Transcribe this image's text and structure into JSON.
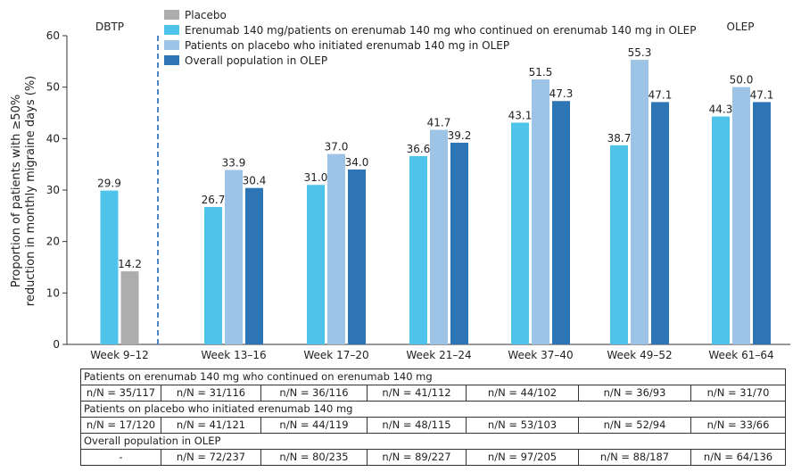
{
  "chart_data": {
    "type": "bar",
    "ylabel_line1": "Proportion of patients with ≥50%",
    "ylabel_line2": "reduction in monthly migraine days (%)",
    "ylim": [
      0,
      60
    ],
    "yticks": [
      0,
      10,
      20,
      30,
      40,
      50,
      60
    ],
    "categories": [
      "Week 9–12",
      "Week 13–16",
      "Week 17–20",
      "Week 21–24",
      "Week 37–40",
      "Week 49–52",
      "Week 61–64"
    ],
    "legend_position": "top",
    "period_labels": {
      "dbtp": "DBTP",
      "olep": "OLEP"
    },
    "series": [
      {
        "name": "Placebo",
        "color": "#adadad",
        "values": [
          14.2,
          null,
          null,
          null,
          null,
          null,
          null
        ]
      },
      {
        "name": "Erenumab 140 mg/patients on erenumab 140 mg who continued on erenumab 140 mg in OLEP",
        "color": "#4fc3ea",
        "values": [
          29.9,
          26.7,
          31.0,
          36.6,
          43.1,
          38.7,
          44.3
        ]
      },
      {
        "name": "Patients on placebo who initiated erenumab 140 mg in OLEP",
        "color": "#9dc3e6",
        "values": [
          null,
          33.9,
          37.0,
          41.7,
          51.5,
          55.3,
          50.0
        ]
      },
      {
        "name": "Overall population in OLEP",
        "color": "#2e75b6",
        "values": [
          null,
          30.4,
          34.0,
          39.2,
          47.3,
          47.1,
          47.1
        ]
      }
    ],
    "data_labels": [
      [
        "29.9",
        "14.2"
      ],
      [
        "26.7",
        "33.9",
        "30.4"
      ],
      [
        "31.0",
        "37.0",
        "34.0"
      ],
      [
        "36.6",
        "41.7",
        "39.2"
      ],
      [
        "43.1",
        "51.5",
        "47.3"
      ],
      [
        "38.7",
        "55.3",
        "47.1"
      ],
      [
        "44.3",
        "50.0",
        "47.1"
      ]
    ],
    "divider_style": "dashed",
    "divider_color": "#4a86c5"
  },
  "table": {
    "sections": [
      {
        "title": "Patients on erenumab 140 mg who continued on erenumab 140 mg",
        "cells": [
          "n/N = 35/117",
          "n/N = 31/116",
          "n/N = 36/116",
          "n/N = 41/112",
          "n/N = 44/102",
          "n/N = 36/93",
          "n/N = 31/70"
        ]
      },
      {
        "title": "Patients on placebo who initiated erenumab 140 mg",
        "cells": [
          "n/N = 17/120",
          "n/N = 41/121",
          "n/N = 44/119",
          "n/N = 48/115",
          "n/N = 53/103",
          "n/N = 52/94",
          "n/N = 33/66"
        ]
      },
      {
        "title": "Overall population in OLEP",
        "cells": [
          "-",
          "n/N = 72/237",
          "n/N = 80/235",
          "n/N = 89/227",
          "n/N = 97/205",
          "n/N = 88/187",
          "n/N = 64/136"
        ]
      }
    ]
  }
}
